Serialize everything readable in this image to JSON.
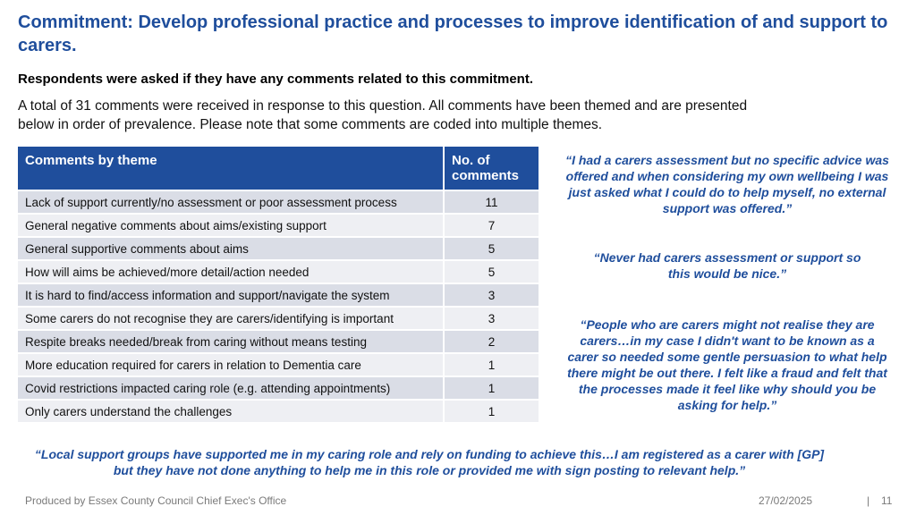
{
  "title": "Commitment: Develop professional practice and processes to improve identification of and support to carers.",
  "subtitle": "Respondents were asked if they have any comments related to this commitment.",
  "intro": "A total of 31 comments were received in response to this question. All comments have been themed and are presented below in order of prevalence. Please note that some comments are coded into multiple themes.",
  "table": {
    "headers": [
      "Comments by theme",
      "No. of comments"
    ],
    "rows": [
      {
        "theme": "Lack of support currently/no assessment or poor assessment process",
        "count": "11"
      },
      {
        "theme": "General negative comments about aims/existing support",
        "count": "7"
      },
      {
        "theme": "General supportive comments about aims",
        "count": "5"
      },
      {
        "theme": "How will aims be achieved/more detail/action needed",
        "count": "5"
      },
      {
        "theme": "It is hard to find/access information and support/navigate the system",
        "count": "3"
      },
      {
        "theme": "Some carers do not recognise they are carers/identifying is important",
        "count": "3"
      },
      {
        "theme": "Respite breaks needed/break from caring without means testing",
        "count": "2"
      },
      {
        "theme": "More education required for carers in relation to Dementia care",
        "count": "1"
      },
      {
        "theme": "Covid restrictions impacted caring role (e.g. attending appointments)",
        "count": "1"
      },
      {
        "theme": "Only carers understand the challenges",
        "count": "1"
      }
    ]
  },
  "quotes": [
    "“I had a carers assessment but no specific advice was offered and when considering my own wellbeing I was just asked what I could do to help myself, no external support was offered.”",
    "“Never had carers assessment or support so this would be nice.”",
    "“People who are carers might not realise they are carers…in my case I didn't want to be known as a carer so needed some gentle persuasion to what help there might be out there. I felt like a fraud and felt that the processes made it feel like why should you be asking for help.”",
    "“Local support groups have supported me in my caring role and rely on funding to achieve this…I am registered as a carer with [GP] but they have not done anything to help me in this role or provided me with sign posting to relevant help.”"
  ],
  "footer": {
    "source": "Produced by Essex County Council Chief Exec's Office",
    "date": "27/02/2025",
    "separator": "|",
    "page": "11"
  }
}
